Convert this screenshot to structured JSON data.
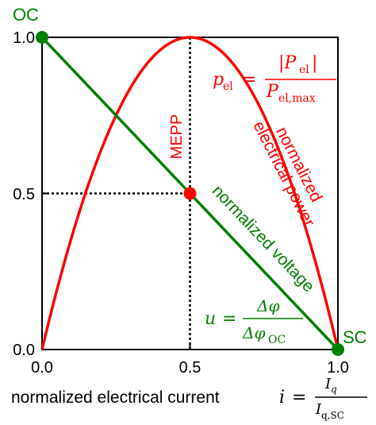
{
  "chart_data": {
    "type": "line",
    "xlabel": "normalized electrical current",
    "xlim": [
      0,
      1
    ],
    "ylim": [
      0,
      1
    ],
    "x_ticks": [
      "0.0",
      "0.5",
      "1.0"
    ],
    "y_ticks": [
      "0.0",
      "0.5",
      "1.0"
    ],
    "grid": false,
    "legend": "none",
    "series": [
      {
        "name": "normalized electrical power",
        "color": "#ff0000",
        "x": [
          0,
          0.1,
          0.2,
          0.3,
          0.4,
          0.5,
          0.6,
          0.7,
          0.8,
          0.9,
          1.0
        ],
        "y": [
          0,
          0.36,
          0.64,
          0.84,
          0.96,
          1.0,
          0.96,
          0.84,
          0.64,
          0.36,
          0
        ]
      },
      {
        "name": "normalized voltage",
        "color": "#008000",
        "x": [
          0,
          1
        ],
        "y": [
          1,
          0
        ]
      }
    ],
    "points": [
      {
        "label": "OC",
        "x": 0,
        "y": 1,
        "color": "#008000"
      },
      {
        "label": "SC",
        "x": 1,
        "y": 0,
        "color": "#008000"
      },
      {
        "label": "MEPP",
        "x": 0.5,
        "y": 0.5,
        "color": "#ff0000"
      }
    ],
    "annotations": {
      "power_label_line1": "normalized",
      "power_label_line2": "electrical power",
      "voltage_label": "normalized voltage",
      "mepp": "MEPP",
      "oc": "OC",
      "sc": "SC"
    },
    "formulas": {
      "current_symbol": "i",
      "current_numerator": "I",
      "current_numerator_sub": "q",
      "current_denominator": "I",
      "current_denominator_sub": "q,SC",
      "power_symbol": "p",
      "power_sub": "el",
      "power_numerator": "|P",
      "power_numerator_sub": "el",
      "power_numerator_close": "|",
      "power_denominator": "P",
      "power_denominator_sub": "el,max",
      "voltage_symbol": "u",
      "voltage_numerator": "Δφ",
      "voltage_denominator": "Δφ",
      "voltage_denominator_sub": "OC",
      "equals": "="
    },
    "colors": {
      "power": "#ff0000",
      "voltage": "#008000",
      "axis": "#000000",
      "guide": "#000000"
    }
  }
}
